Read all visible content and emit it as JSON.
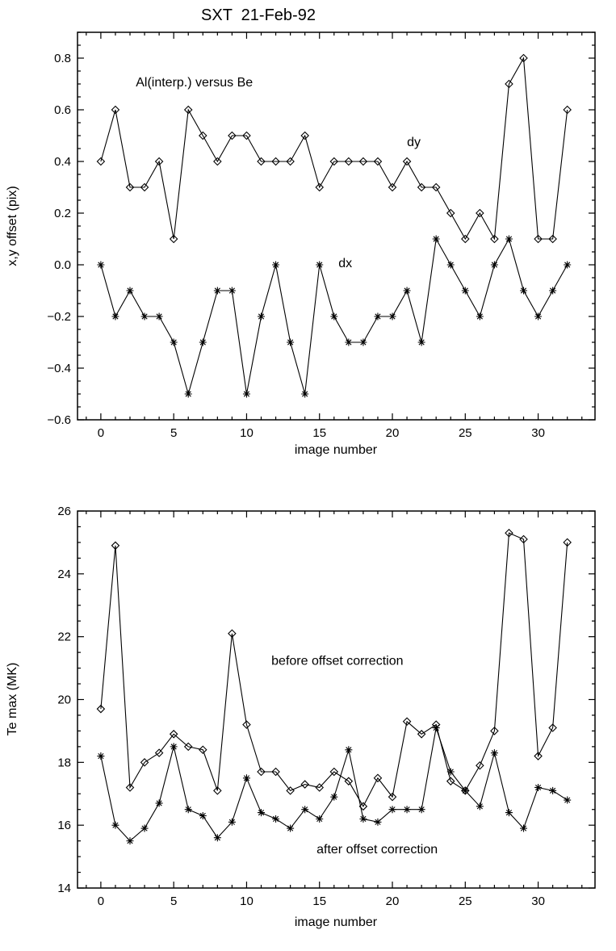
{
  "figure": {
    "title": "SXT  21-Feb-92"
  },
  "chart_data": [
    {
      "type": "line",
      "title": "SXT  21-Feb-92",
      "xlabel": "image number",
      "ylabel": "x,y offset (pix)",
      "xlim": [
        -1.6,
        33.9
      ],
      "ylim": [
        -0.6,
        0.9
      ],
      "xticks": [
        0,
        5,
        10,
        15,
        20,
        25,
        30
      ],
      "ytick_values": [
        -0.6,
        -0.4,
        -0.2,
        0,
        0.2,
        0.4,
        0.6,
        0.8
      ],
      "ytick_labels": [
        "−0.6",
        "−0.4",
        "−0.2",
        "0.0",
        "0.2",
        "0.4",
        "0.6",
        "0.8"
      ],
      "grid": false,
      "line_color": "#000000",
      "x": [
        0,
        1,
        2,
        3,
        4,
        5,
        6,
        7,
        8,
        9,
        10,
        11,
        12,
        13,
        14,
        15,
        16,
        17,
        18,
        19,
        20,
        21,
        22,
        23,
        24,
        25,
        26,
        27,
        28,
        29,
        30,
        31,
        32
      ],
      "series": [
        {
          "name": "dy",
          "marker": "diamond",
          "values": [
            0.4,
            0.6,
            0.3,
            0.3,
            0.4,
            0.1,
            0.6,
            0.5,
            0.4,
            0.5,
            0.5,
            0.4,
            0.4,
            0.4,
            0.5,
            0.3,
            0.4,
            0.4,
            0.4,
            0.4,
            0.3,
            0.4,
            0.3,
            0.3,
            0.2,
            0.1,
            0.2,
            0.1,
            0.7,
            0.8,
            0.1,
            0.1,
            0.6
          ]
        },
        {
          "name": "dx",
          "marker": "asterisk",
          "values": [
            0,
            -0.2,
            -0.1,
            -0.2,
            -0.2,
            -0.3,
            -0.5,
            -0.3,
            -0.1,
            -0.1,
            -0.5,
            -0.2,
            0,
            -0.3,
            -0.5,
            0,
            -0.2,
            -0.3,
            -0.3,
            -0.2,
            -0.2,
            -0.1,
            -0.3,
            0.1,
            0,
            -0.1,
            -0.2,
            0,
            0.1,
            -0.1,
            -0.2,
            -0.1,
            0
          ]
        }
      ],
      "annotations": [
        {
          "text": "Al(interp.) versus Be",
          "x": 2.4,
          "y": 0.69,
          "anchor": "start"
        },
        {
          "text": "dy",
          "x": 21,
          "y": 0.46,
          "anchor": "start"
        },
        {
          "text": "dx",
          "x": 16.3,
          "y": -0.01,
          "anchor": "start"
        }
      ]
    },
    {
      "type": "line",
      "title": "",
      "xlabel": "image number",
      "ylabel": "Te max (MK)",
      "xlim": [
        -1.6,
        33.9
      ],
      "ylim": [
        14,
        26
      ],
      "xticks": [
        0,
        5,
        10,
        15,
        20,
        25,
        30
      ],
      "ytick_values": [
        14,
        16,
        18,
        20,
        22,
        24,
        26
      ],
      "ytick_labels": [
        "14",
        "16",
        "18",
        "20",
        "22",
        "24",
        "26"
      ],
      "grid": false,
      "line_color": "#000000",
      "x": [
        0,
        1,
        2,
        3,
        4,
        5,
        6,
        7,
        8,
        9,
        10,
        11,
        12,
        13,
        14,
        15,
        16,
        17,
        18,
        19,
        20,
        21,
        22,
        23,
        24,
        25,
        26,
        27,
        28,
        29,
        30,
        31,
        32
      ],
      "series": [
        {
          "name": "before offset correction",
          "marker": "diamond",
          "values": [
            19.7,
            24.9,
            17.2,
            18.0,
            18.3,
            18.9,
            18.5,
            18.4,
            17.1,
            22.1,
            19.2,
            17.7,
            17.7,
            17.1,
            17.3,
            17.2,
            17.7,
            17.4,
            16.6,
            17.5,
            16.9,
            19.3,
            18.9,
            19.2,
            17.4,
            17.1,
            17.9,
            19.0,
            25.3,
            25.1,
            18.2,
            19.1,
            25.0
          ]
        },
        {
          "name": "after offset correction",
          "marker": "asterisk",
          "values": [
            18.2,
            16.0,
            15.5,
            15.9,
            16.7,
            18.5,
            16.5,
            16.3,
            15.6,
            16.1,
            17.5,
            16.4,
            16.2,
            15.9,
            16.5,
            16.2,
            16.9,
            18.4,
            16.2,
            16.1,
            16.5,
            16.5,
            16.5,
            19.1,
            17.7,
            17.1,
            16.6,
            18.3,
            16.4,
            15.9,
            17.2,
            17.1,
            16.8
          ]
        }
      ],
      "annotations": [
        {
          "text": "before offset correction",
          "x": 11.7,
          "y": 21.1,
          "anchor": "start"
        },
        {
          "text": "after offset correction",
          "x": 14.8,
          "y": 15.1,
          "anchor": "start"
        }
      ]
    }
  ]
}
